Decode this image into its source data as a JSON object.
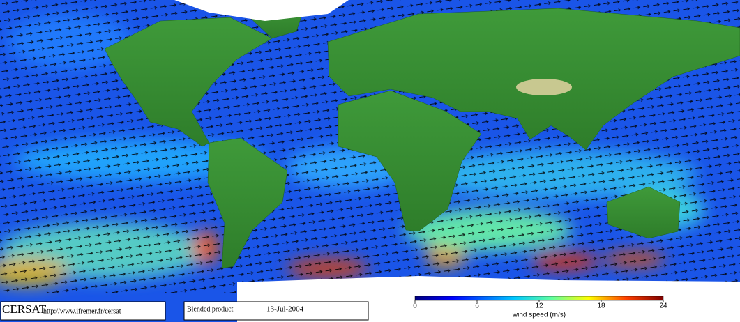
{
  "map": {
    "logo": "CERSAT",
    "url": "http://www.ifremer.fr/cersat",
    "product": "Blended product",
    "date": "13-Jul-2004",
    "colorbar": {
      "label": "wind speed (m/s)",
      "lim": [
        0,
        24
      ],
      "ticks": [
        0,
        6,
        12,
        18,
        24
      ]
    }
  }
}
